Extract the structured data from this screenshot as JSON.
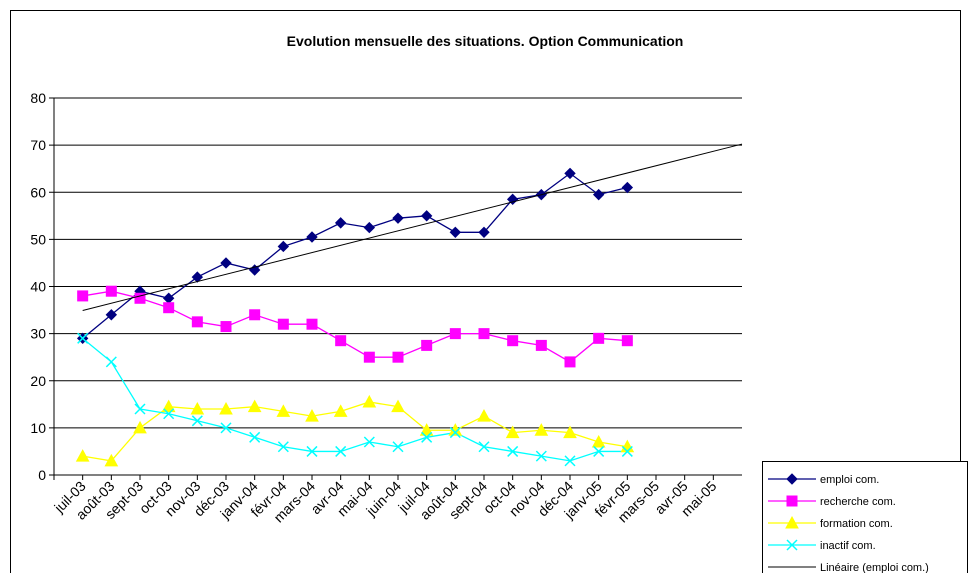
{
  "chart_data": {
    "type": "line",
    "title": "Evolution mensuelle des situations. Option Communication",
    "categories": [
      null,
      "juil-03",
      "août-03",
      "sept-03",
      "oct-03",
      "nov-03",
      "déc-03",
      "janv-04",
      "févr-04",
      "mars-04",
      "avr-04",
      "mai-04",
      "juin-04",
      "juil-04",
      "août-04",
      "sept-04",
      "oct-04",
      "nov-04",
      "déc-04",
      "janv-05",
      "févr-05",
      "mars-05",
      "avr-05",
      "mai-05"
    ],
    "series": [
      {
        "name": "emploi com.",
        "color": "#000080",
        "marker": "diamond",
        "values": [
          null,
          29,
          34,
          39,
          37.5,
          42,
          45,
          43.5,
          48.5,
          50.5,
          53.5,
          52.5,
          54.5,
          55,
          51.5,
          51.5,
          58.5,
          59.5,
          64,
          59.5,
          61,
          null,
          null,
          null
        ]
      },
      {
        "name": "recherche com.",
        "color": "#FF00FF",
        "marker": "square",
        "values": [
          null,
          38,
          39,
          37.5,
          35.5,
          32.5,
          31.5,
          34,
          32,
          32,
          28.5,
          25,
          25,
          27.5,
          30,
          30,
          28.5,
          27.5,
          24,
          29,
          28.5,
          null,
          null,
          null
        ]
      },
      {
        "name": "formation com.",
        "color": "#FFFF00",
        "marker": "triangle",
        "values": [
          null,
          4,
          3,
          10,
          14.5,
          14,
          14,
          14.5,
          13.5,
          12.5,
          13.5,
          15.5,
          14.5,
          9.5,
          9.5,
          12.5,
          9,
          9.5,
          9,
          7,
          6,
          null,
          null,
          null
        ]
      },
      {
        "name": "inactif com.",
        "color": "#00FFFF",
        "marker": "x",
        "values": [
          null,
          29,
          24,
          14,
          13,
          11.5,
          10,
          8,
          6,
          5,
          5,
          7,
          6,
          8,
          9,
          6,
          5,
          4,
          3,
          5,
          5,
          null,
          null,
          null
        ]
      }
    ],
    "trendline_name": "Linéaire (emploi com.)",
    "ylim": [
      0,
      80
    ],
    "yticks": [
      0,
      10,
      20,
      30,
      40,
      50,
      60,
      70,
      80
    ],
    "grid": true
  }
}
